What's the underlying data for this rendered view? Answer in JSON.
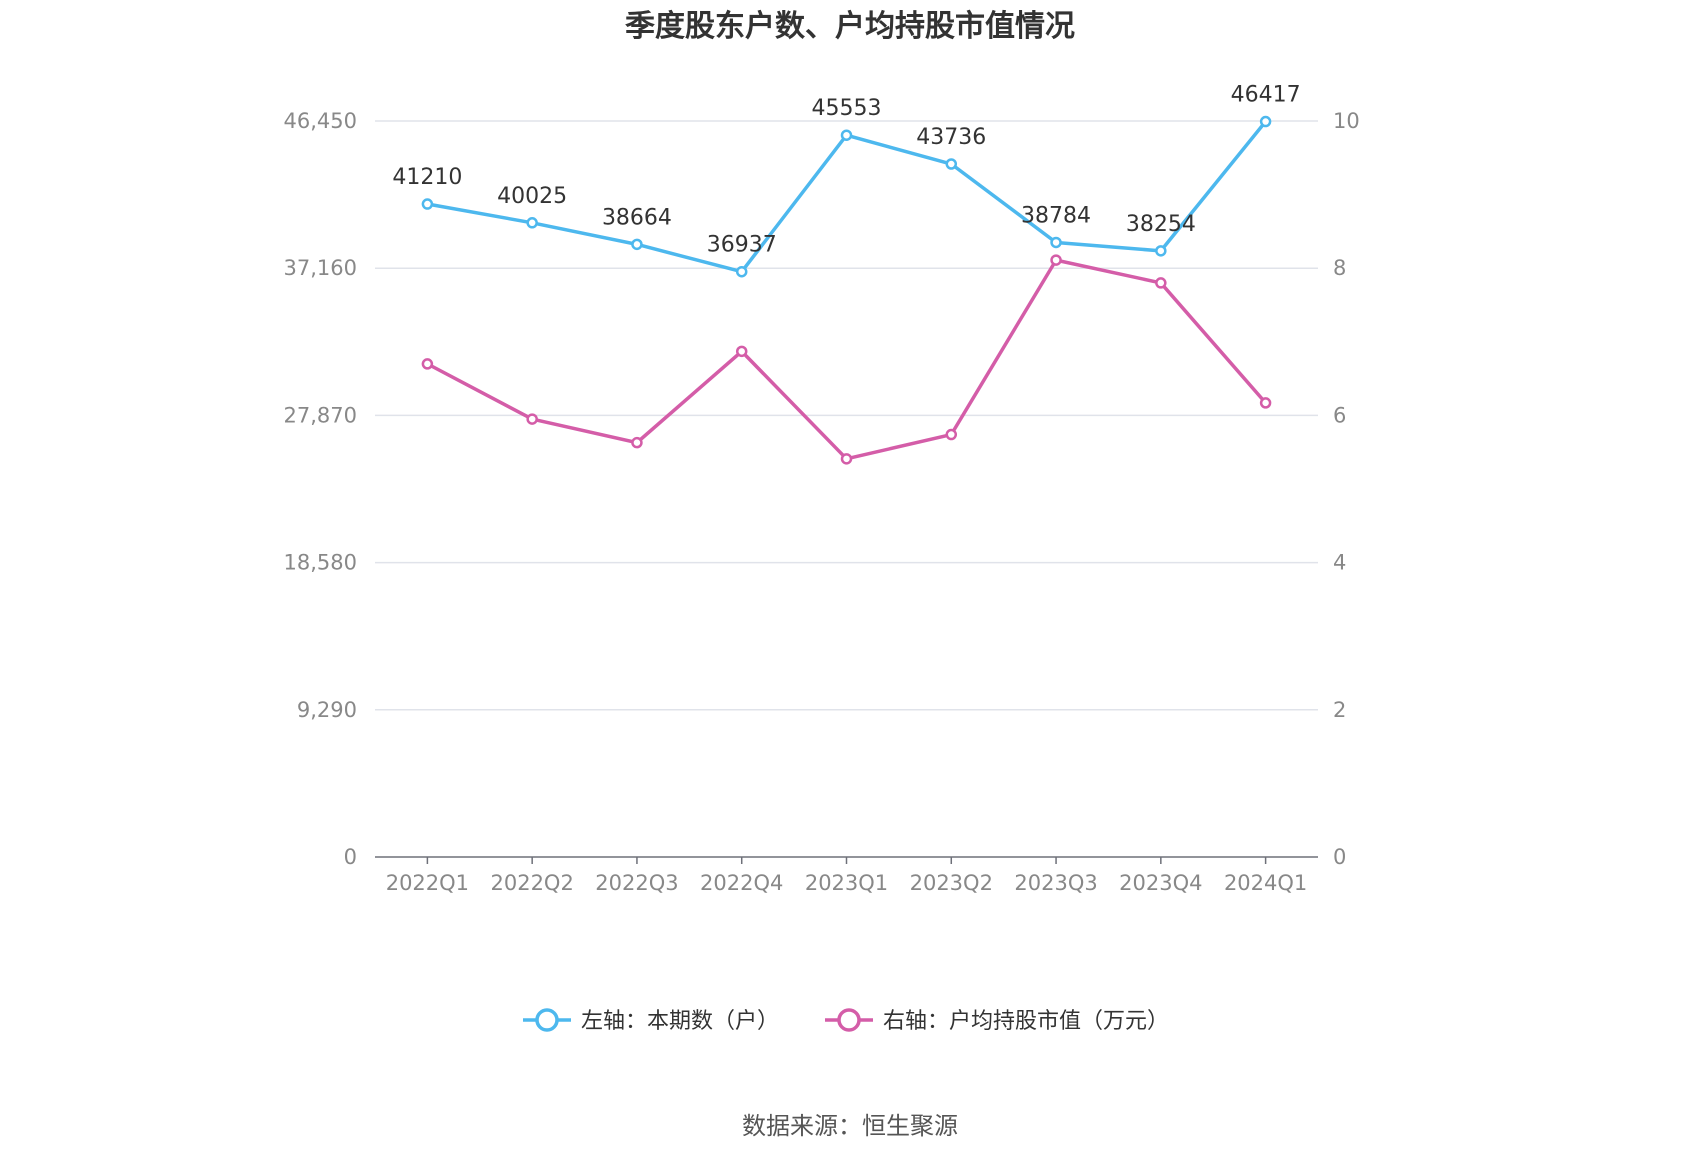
{
  "chart_data": {
    "type": "line",
    "title": "季度股东户数、户均持股市值情况",
    "categories": [
      "2022Q1",
      "2022Q2",
      "2022Q3",
      "2022Q4",
      "2023Q1",
      "2023Q2",
      "2023Q3",
      "2023Q4",
      "2024Q1"
    ],
    "left_axis": {
      "ticks": [
        "0",
        "9,290",
        "18,580",
        "27,870",
        "37,160",
        "46,450"
      ],
      "ylim": [
        0,
        46450
      ]
    },
    "right_axis": {
      "ticks": [
        "0",
        "2",
        "4",
        "6",
        "8",
        "10"
      ],
      "ylim": [
        0,
        10
      ]
    },
    "series": [
      {
        "name": "左轴：本期数（户）",
        "axis": "left",
        "color": "#4db8ee",
        "values": [
          41210,
          40025,
          38664,
          36937,
          45553,
          43736,
          38784,
          38254,
          46417
        ],
        "labels": [
          "41210",
          "40025",
          "38664",
          "36937",
          "45553",
          "43736",
          "38784",
          "38254",
          "46417"
        ]
      },
      {
        "name": "右轴：户均持股市值（万元）",
        "axis": "right",
        "color": "#d45da8",
        "values": [
          6.7,
          5.95,
          5.63,
          6.87,
          5.41,
          5.74,
          8.11,
          7.8,
          6.17
        ]
      }
    ],
    "grid": true,
    "legend_position": "bottom"
  },
  "source": "数据来源：恒生聚源"
}
